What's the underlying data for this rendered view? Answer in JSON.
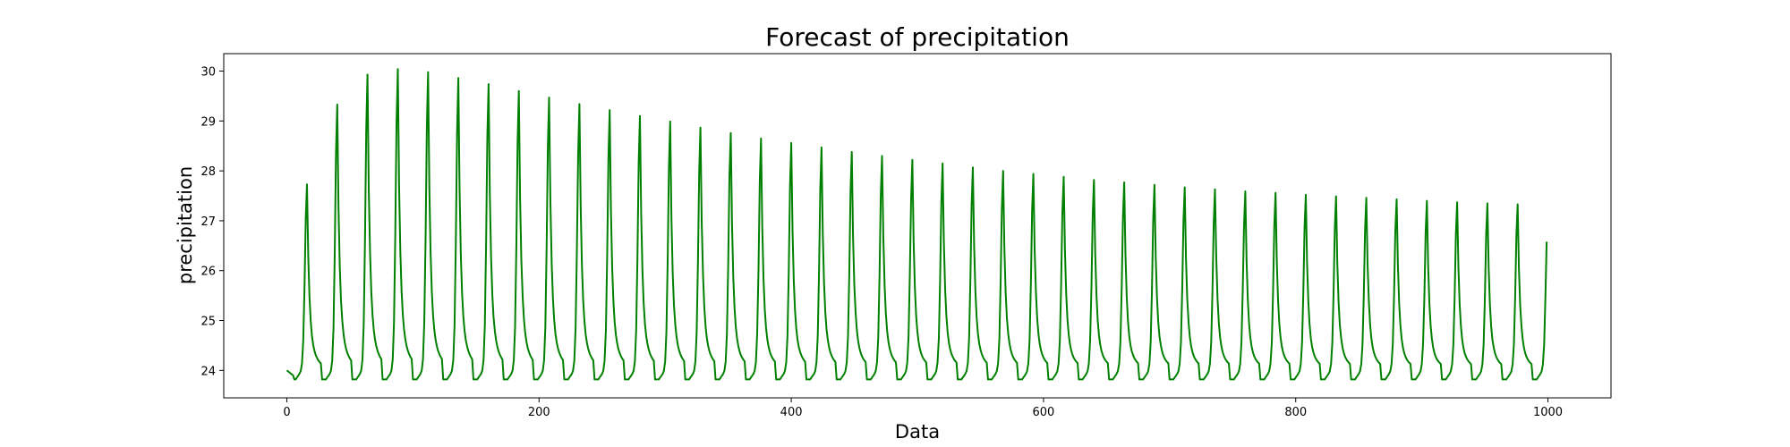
{
  "chart_data": {
    "type": "line",
    "title": "Forecast of precipitation",
    "xlabel": "Data",
    "ylabel": "precipitation",
    "xlim": [
      -50,
      1050
    ],
    "ylim": [
      23.45,
      30.35
    ],
    "xticks": [
      0,
      200,
      400,
      600,
      800,
      1000
    ],
    "yticks": [
      24,
      25,
      26,
      27,
      28,
      29,
      30
    ],
    "grid": false,
    "series": [
      {
        "color": "#008000",
        "period": 24,
        "x_range": [
          0,
          999
        ],
        "base_value": 24.0,
        "peaks": [
          {
            "x": 16,
            "y": 27.73
          },
          {
            "x": 40,
            "y": 29.33
          },
          {
            "x": 64,
            "y": 29.93
          },
          {
            "x": 88,
            "y": 30.04
          },
          {
            "x": 112,
            "y": 29.98
          },
          {
            "x": 136,
            "y": 29.86
          },
          {
            "x": 160,
            "y": 29.74
          },
          {
            "x": 184,
            "y": 29.6
          },
          {
            "x": 208,
            "y": 29.47
          },
          {
            "x": 232,
            "y": 29.34
          },
          {
            "x": 256,
            "y": 29.22
          },
          {
            "x": 280,
            "y": 29.1
          },
          {
            "x": 304,
            "y": 28.99
          },
          {
            "x": 328,
            "y": 28.87
          },
          {
            "x": 352,
            "y": 28.76
          },
          {
            "x": 376,
            "y": 28.65
          },
          {
            "x": 400,
            "y": 28.56
          },
          {
            "x": 424,
            "y": 28.47
          },
          {
            "x": 448,
            "y": 28.38
          },
          {
            "x": 472,
            "y": 28.3
          },
          {
            "x": 496,
            "y": 28.22
          },
          {
            "x": 520,
            "y": 28.15
          },
          {
            "x": 544,
            "y": 28.07
          },
          {
            "x": 568,
            "y": 28.0
          },
          {
            "x": 592,
            "y": 27.94
          },
          {
            "x": 616,
            "y": 27.88
          },
          {
            "x": 640,
            "y": 27.82
          },
          {
            "x": 664,
            "y": 27.77
          },
          {
            "x": 688,
            "y": 27.72
          },
          {
            "x": 712,
            "y": 27.67
          },
          {
            "x": 736,
            "y": 27.63
          },
          {
            "x": 760,
            "y": 27.59
          },
          {
            "x": 784,
            "y": 27.56
          },
          {
            "x": 808,
            "y": 27.52
          },
          {
            "x": 832,
            "y": 27.49
          },
          {
            "x": 856,
            "y": 27.46
          },
          {
            "x": 880,
            "y": 27.43
          },
          {
            "x": 904,
            "y": 27.4
          },
          {
            "x": 928,
            "y": 27.37
          },
          {
            "x": 952,
            "y": 27.35
          },
          {
            "x": 976,
            "y": 27.33
          }
        ],
        "end_point": {
          "x": 999,
          "y": 26.58
        }
      }
    ]
  }
}
